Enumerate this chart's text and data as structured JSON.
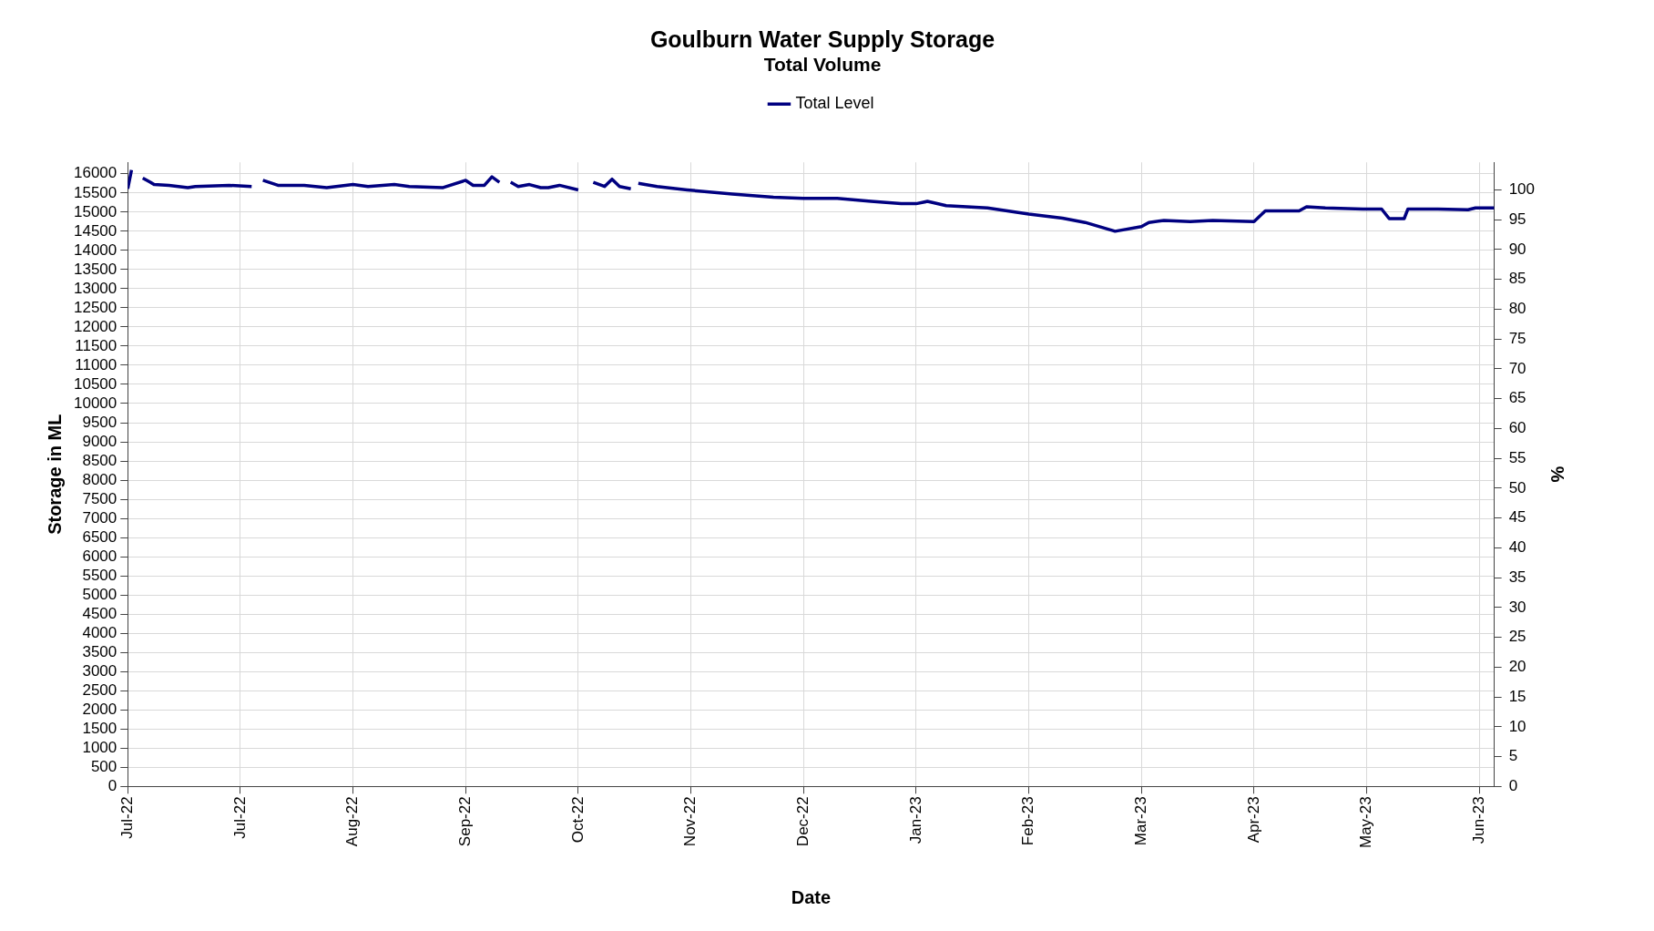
{
  "chart_data": {
    "type": "line",
    "title": "Goulburn Water Supply Storage",
    "subtitle": "Total Volume",
    "xlabel": "Date",
    "ylabel": "Storage in ML",
    "y2label": "%",
    "x": [
      "2022-07-01",
      "2022-07-02",
      "2022-07-03",
      "2022-07-05",
      "2022-07-07",
      "2022-07-08",
      "2022-07-12",
      "2022-07-17",
      "2022-07-19",
      "2022-07-28",
      "2022-08-03",
      "2022-08-04",
      "2022-08-06",
      "2022-08-10",
      "2022-08-17",
      "2022-08-23",
      "2022-08-30",
      "2022-09-03",
      "2022-09-10",
      "2022-09-14",
      "2022-09-23",
      "2022-09-29",
      "2022-10-01",
      "2022-10-04",
      "2022-10-06",
      "2022-10-08",
      "2022-10-09",
      "2022-10-11",
      "2022-10-13",
      "2022-10-16",
      "2022-10-19",
      "2022-10-21",
      "2022-10-24",
      "2022-10-29",
      "2022-10-31",
      "2022-11-02",
      "2022-11-05",
      "2022-11-07",
      "2022-11-09",
      "2022-11-12",
      "2022-11-13",
      "2022-11-14",
      "2022-11-19",
      "2022-11-27",
      "2022-12-09",
      "2022-12-20",
      "2022-12-28",
      "2023-01-06",
      "2023-01-15",
      "2023-01-23",
      "2023-01-27",
      "2023-01-30",
      "2023-02-04",
      "2023-02-15",
      "2023-02-26",
      "2023-03-07",
      "2023-03-13",
      "2023-03-21",
      "2023-03-28",
      "2023-03-30",
      "2023-04-03",
      "2023-04-10",
      "2023-04-16",
      "2023-04-27",
      "2023-04-30",
      "2023-05-09",
      "2023-05-11",
      "2023-05-16",
      "2023-05-26",
      "2023-05-31",
      "2023-06-02",
      "2023-06-06",
      "2023-06-07",
      "2023-06-15",
      "2023-06-23",
      "2023-06-25",
      "2023-06-30"
    ],
    "series": [
      {
        "name": "Total Level",
        "color": "#000080",
        "values": [
          15610,
          16100,
          null,
          15890,
          15780,
          15720,
          15700,
          15640,
          15670,
          15700,
          15670,
          null,
          15830,
          15700,
          15700,
          15640,
          15720,
          15670,
          15720,
          15670,
          15640,
          15830,
          15700,
          15700,
          15920,
          15780,
          null,
          15780,
          15670,
          15720,
          15640,
          15640,
          15700,
          15580,
          null,
          15780,
          15670,
          15860,
          15670,
          15610,
          null,
          15750,
          15670,
          15580,
          15470,
          15390,
          15360,
          15360,
          15280,
          15220,
          15220,
          15280,
          15170,
          15110,
          14950,
          14840,
          14730,
          14500,
          14620,
          14730,
          14780,
          14750,
          14780,
          14750,
          15030,
          15030,
          15140,
          15110,
          15080,
          15080,
          14830,
          14830,
          15080,
          15080,
          15060,
          15110,
          15110
        ]
      }
    ],
    "xlim": [
      "2022-07-01",
      "2023-06-30"
    ],
    "xticks": [
      {
        "value": "2022-07-01",
        "label": "Jul-22"
      },
      {
        "value": "2022-07-31",
        "label": "Jul-22"
      },
      {
        "value": "2022-08-30",
        "label": "Aug-22"
      },
      {
        "value": "2022-09-29",
        "label": "Sep-22"
      },
      {
        "value": "2022-10-29",
        "label": "Oct-22"
      },
      {
        "value": "2022-11-28",
        "label": "Nov-22"
      },
      {
        "value": "2022-12-28",
        "label": "Dec-22"
      },
      {
        "value": "2023-01-27",
        "label": "Jan-23"
      },
      {
        "value": "2023-02-26",
        "label": "Feb-23"
      },
      {
        "value": "2023-03-28",
        "label": "Mar-23"
      },
      {
        "value": "2023-04-27",
        "label": "Apr-23"
      },
      {
        "value": "2023-05-27",
        "label": "May-23"
      },
      {
        "value": "2023-06-26",
        "label": "Jun-23"
      }
    ],
    "ylim": [
      0,
      16300
    ],
    "yticks": [
      0,
      500,
      1000,
      1500,
      2000,
      2500,
      3000,
      3500,
      4000,
      4500,
      5000,
      5500,
      6000,
      6500,
      7000,
      7500,
      8000,
      8500,
      9000,
      9500,
      10000,
      10500,
      11000,
      11500,
      12000,
      12500,
      13000,
      13500,
      14000,
      14500,
      15000,
      15500,
      16000
    ],
    "y2lim": [
      0,
      104.6
    ],
    "y2ticks": [
      0,
      5,
      10,
      15,
      20,
      25,
      30,
      35,
      40,
      45,
      50,
      55,
      60,
      65,
      70,
      75,
      80,
      85,
      90,
      95,
      100
    ],
    "grid": true,
    "legend": "top",
    "marker": "none",
    "line_style": "solid"
  }
}
